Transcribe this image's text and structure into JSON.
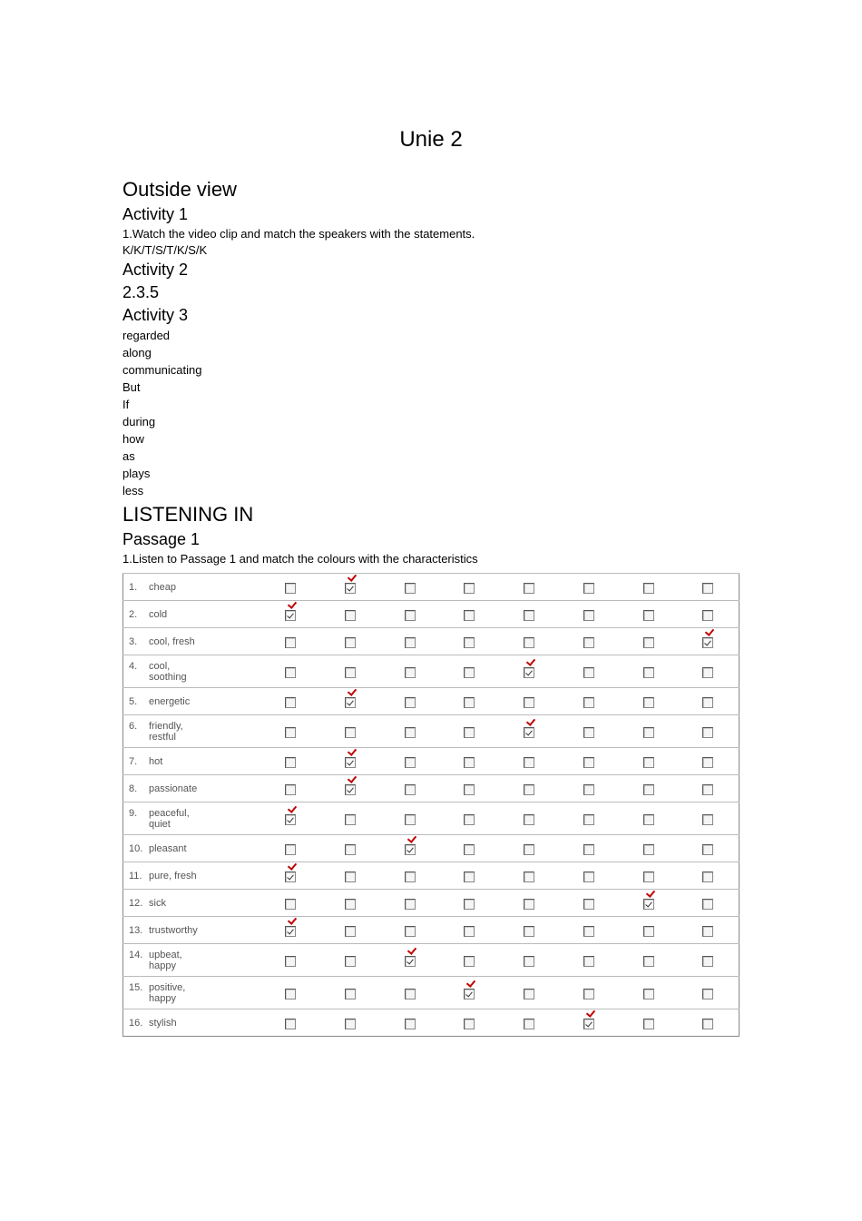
{
  "title": "Unie 2",
  "sections": [
    {
      "type": "h2",
      "text": "Outside view"
    },
    {
      "type": "h3",
      "text": "Activity 1"
    },
    {
      "type": "line",
      "text": "1.Watch the video clip and match the speakers with the statements."
    },
    {
      "type": "line",
      "text": "K/K/T/S/T/K/S/K"
    },
    {
      "type": "h3",
      "text": "Activity 2"
    },
    {
      "type": "h3",
      "text": "2.3.5"
    },
    {
      "type": "h3",
      "text": "Activity 3"
    },
    {
      "type": "word",
      "text": "regarded"
    },
    {
      "type": "word",
      "text": "along"
    },
    {
      "type": "word",
      "text": "communicating"
    },
    {
      "type": "word",
      "text": "But"
    },
    {
      "type": "word",
      "text": "If"
    },
    {
      "type": "word",
      "text": "during"
    },
    {
      "type": "word",
      "text": "how"
    },
    {
      "type": "word",
      "text": "as"
    },
    {
      "type": "word",
      "text": "plays"
    },
    {
      "type": "word",
      "text": "less"
    },
    {
      "type": "h2",
      "text": "LISTENING IN"
    },
    {
      "type": "h3",
      "text": "Passage 1"
    },
    {
      "type": "line",
      "text": "1.Listen to Passage 1 and match the colours with the characteristics"
    }
  ],
  "table": {
    "columns": 8,
    "rows": [
      {
        "num": "1.",
        "label": "cheap",
        "checked_col": 2,
        "tall": false
      },
      {
        "num": "2.",
        "label": "cold",
        "checked_col": 1,
        "tall": false
      },
      {
        "num": "3.",
        "label": "cool, fresh",
        "checked_col": 8,
        "tall": false
      },
      {
        "num": "4.",
        "label": "cool,\nsoothing",
        "checked_col": 5,
        "tall": true
      },
      {
        "num": "5.",
        "label": "energetic",
        "checked_col": 2,
        "tall": false
      },
      {
        "num": "6.",
        "label": "friendly,\nrestful",
        "checked_col": 5,
        "tall": true
      },
      {
        "num": "7.",
        "label": "hot",
        "checked_col": 2,
        "tall": false
      },
      {
        "num": "8.",
        "label": "passionate",
        "checked_col": 2,
        "tall": false
      },
      {
        "num": "9.",
        "label": "peaceful,\nquiet",
        "checked_col": 1,
        "tall": true
      },
      {
        "num": "10.",
        "label": "pleasant",
        "checked_col": 3,
        "tall": false
      },
      {
        "num": "11.",
        "label": "pure, fresh",
        "checked_col": 1,
        "tall": false
      },
      {
        "num": "12.",
        "label": "sick",
        "checked_col": 7,
        "tall": false
      },
      {
        "num": "13.",
        "label": "trustworthy",
        "checked_col": 1,
        "tall": false
      },
      {
        "num": "14.",
        "label": "upbeat,\nhappy",
        "checked_col": 3,
        "tall": true
      },
      {
        "num": "15.",
        "label": "positive,\nhappy",
        "checked_col": 4,
        "tall": true
      },
      {
        "num": "16.",
        "label": "stylish",
        "checked_col": 6,
        "tall": false
      }
    ]
  },
  "colors": {
    "text": "#000000",
    "muted": "#555555",
    "border": "#888888",
    "tick": "#c00000"
  }
}
